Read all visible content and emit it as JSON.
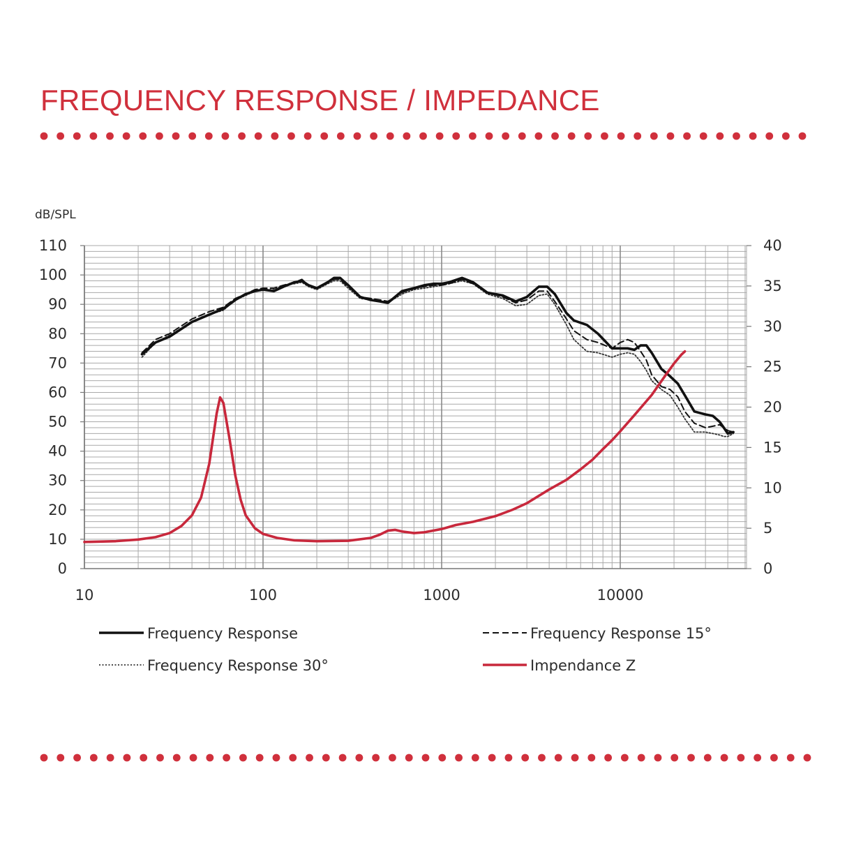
{
  "title": "FREQUENCY RESPONSE / IMPEDANCE",
  "colors": {
    "accent": "#d0303c",
    "curve": "#111111",
    "grid": "#a9a9a9",
    "impedance": "#c8283c"
  },
  "chart_data": {
    "type": "line",
    "ylabel": "dB/SPL",
    "x_scale": "log",
    "xlim": [
      10,
      50000
    ],
    "ylim": [
      0,
      110
    ],
    "y2lim": [
      0,
      40
    ],
    "x_ticks": [
      "10",
      "100",
      "1000",
      "10000"
    ],
    "y_ticks": [
      "0",
      "10",
      "20",
      "30",
      "40",
      "50",
      "60",
      "70",
      "80",
      "90",
      "100",
      "110"
    ],
    "y2_ticks": [
      "0",
      "5",
      "10",
      "15",
      "20",
      "25",
      "30",
      "35",
      "40"
    ],
    "grid": true,
    "legend_position": "bottom",
    "series": [
      {
        "name": "Frequency Response",
        "axis": "left",
        "style": "solid",
        "points": [
          [
            21,
            73
          ],
          [
            25,
            77
          ],
          [
            30,
            79
          ],
          [
            40,
            84
          ],
          [
            50,
            86.5
          ],
          [
            60,
            88.5
          ],
          [
            70,
            91.5
          ],
          [
            80,
            93.5
          ],
          [
            90,
            94.5
          ],
          [
            100,
            95
          ],
          [
            115,
            94.5
          ],
          [
            130,
            96
          ],
          [
            150,
            97.5
          ],
          [
            165,
            98
          ],
          [
            180,
            96.5
          ],
          [
            200,
            95.5
          ],
          [
            230,
            97.5
          ],
          [
            250,
            99
          ],
          [
            270,
            99
          ],
          [
            300,
            96.5
          ],
          [
            350,
            92.5
          ],
          [
            400,
            91.5
          ],
          [
            450,
            91
          ],
          [
            500,
            90.5
          ],
          [
            600,
            94.5
          ],
          [
            700,
            95.5
          ],
          [
            800,
            96.5
          ],
          [
            900,
            97
          ],
          [
            1000,
            97
          ],
          [
            1100,
            97.5
          ],
          [
            1300,
            99
          ],
          [
            1500,
            97.5
          ],
          [
            1800,
            94
          ],
          [
            2200,
            93
          ],
          [
            2600,
            91
          ],
          [
            3000,
            92.5
          ],
          [
            3500,
            96
          ],
          [
            3900,
            96
          ],
          [
            4300,
            93.5
          ],
          [
            5000,
            87
          ],
          [
            5500,
            84.5
          ],
          [
            6500,
            83
          ],
          [
            7500,
            80
          ],
          [
            9000,
            75
          ],
          [
            10000,
            75
          ],
          [
            11000,
            75
          ],
          [
            12000,
            74.5
          ],
          [
            13000,
            76
          ],
          [
            14000,
            76
          ],
          [
            15000,
            73.5
          ],
          [
            17000,
            68
          ],
          [
            19000,
            65.5
          ],
          [
            21000,
            63
          ],
          [
            23000,
            59
          ],
          [
            26000,
            53.5
          ],
          [
            30000,
            52.5
          ],
          [
            33000,
            52
          ],
          [
            36000,
            50
          ],
          [
            38000,
            48
          ],
          [
            40000,
            46
          ],
          [
            43000,
            46.5
          ]
        ]
      },
      {
        "name": "Frequency Response 15°",
        "axis": "left",
        "style": "dashed",
        "points": [
          [
            21,
            73.5
          ],
          [
            25,
            78
          ],
          [
            30,
            80
          ],
          [
            40,
            85
          ],
          [
            50,
            87.5
          ],
          [
            60,
            89
          ],
          [
            70,
            92
          ],
          [
            80,
            93.5
          ],
          [
            90,
            95
          ],
          [
            100,
            95.5
          ],
          [
            115,
            95.5
          ],
          [
            130,
            96.5
          ],
          [
            150,
            97.5
          ],
          [
            165,
            98.5
          ],
          [
            180,
            96.5
          ],
          [
            200,
            95.5
          ],
          [
            230,
            97.5
          ],
          [
            250,
            98.5
          ],
          [
            270,
            98.5
          ],
          [
            300,
            96
          ],
          [
            350,
            92.5
          ],
          [
            400,
            92
          ],
          [
            450,
            91.5
          ],
          [
            500,
            91
          ],
          [
            600,
            94
          ],
          [
            700,
            95.5
          ],
          [
            800,
            96
          ],
          [
            900,
            96.5
          ],
          [
            1000,
            96.5
          ],
          [
            1100,
            97
          ],
          [
            1300,
            98.5
          ],
          [
            1500,
            97
          ],
          [
            1800,
            94
          ],
          [
            2200,
            92.5
          ],
          [
            2600,
            90.5
          ],
          [
            3000,
            91.5
          ],
          [
            3500,
            94.5
          ],
          [
            3900,
            94.5
          ],
          [
            4300,
            91
          ],
          [
            5000,
            85
          ],
          [
            5500,
            81
          ],
          [
            6500,
            78
          ],
          [
            7500,
            77
          ],
          [
            9000,
            75
          ],
          [
            10000,
            77
          ],
          [
            11000,
            78
          ],
          [
            12000,
            77
          ],
          [
            13000,
            74
          ],
          [
            14000,
            71
          ],
          [
            15000,
            66
          ],
          [
            17000,
            62
          ],
          [
            19000,
            61
          ],
          [
            21000,
            58.5
          ],
          [
            23000,
            53.5
          ],
          [
            26000,
            49.5
          ],
          [
            30000,
            48
          ],
          [
            33000,
            48.5
          ],
          [
            36000,
            49
          ],
          [
            38000,
            48
          ],
          [
            40000,
            47
          ],
          [
            43000,
            46.5
          ]
        ]
      },
      {
        "name": "Frequency Response 30°",
        "axis": "left",
        "style": "dotted",
        "points": [
          [
            21,
            72
          ],
          [
            25,
            77
          ],
          [
            30,
            79.5
          ],
          [
            40,
            84
          ],
          [
            50,
            86.5
          ],
          [
            60,
            88
          ],
          [
            70,
            91.5
          ],
          [
            80,
            93
          ],
          [
            90,
            94.5
          ],
          [
            100,
            95
          ],
          [
            115,
            95
          ],
          [
            130,
            96.5
          ],
          [
            150,
            97
          ],
          [
            165,
            97.5
          ],
          [
            180,
            96
          ],
          [
            200,
            95
          ],
          [
            230,
            97
          ],
          [
            250,
            98
          ],
          [
            270,
            98
          ],
          [
            300,
            95.5
          ],
          [
            350,
            92
          ],
          [
            400,
            91.5
          ],
          [
            450,
            91
          ],
          [
            500,
            90.5
          ],
          [
            600,
            93.5
          ],
          [
            700,
            95
          ],
          [
            800,
            95.5
          ],
          [
            900,
            96
          ],
          [
            1000,
            96.5
          ],
          [
            1100,
            97
          ],
          [
            1300,
            98
          ],
          [
            1500,
            97
          ],
          [
            1800,
            93.5
          ],
          [
            2200,
            92
          ],
          [
            2600,
            89.5
          ],
          [
            3000,
            90
          ],
          [
            3500,
            93
          ],
          [
            3900,
            93.5
          ],
          [
            4300,
            90
          ],
          [
            5000,
            83
          ],
          [
            5500,
            78
          ],
          [
            6500,
            74
          ],
          [
            7500,
            73.5
          ],
          [
            9000,
            72
          ],
          [
            10000,
            73
          ],
          [
            11000,
            73.5
          ],
          [
            12000,
            73
          ],
          [
            13000,
            70.5
          ],
          [
            14000,
            67.5
          ],
          [
            15000,
            64
          ],
          [
            17000,
            61
          ],
          [
            19000,
            59
          ],
          [
            21000,
            55
          ],
          [
            23000,
            51
          ],
          [
            26000,
            46.5
          ],
          [
            30000,
            46.5
          ],
          [
            33000,
            46
          ],
          [
            36000,
            45.5
          ],
          [
            38000,
            45
          ],
          [
            40000,
            45
          ],
          [
            43000,
            46
          ]
        ]
      },
      {
        "name": "Impendance Z",
        "axis": "right",
        "style": "solid",
        "points": [
          [
            10,
            3.3
          ],
          [
            15,
            3.4
          ],
          [
            20,
            3.6
          ],
          [
            25,
            3.9
          ],
          [
            30,
            4.4
          ],
          [
            35,
            5.3
          ],
          [
            40,
            6.6
          ],
          [
            45,
            8.8
          ],
          [
            50,
            13
          ],
          [
            55,
            19.2
          ],
          [
            57.5,
            21.2
          ],
          [
            60,
            20.5
          ],
          [
            65,
            16
          ],
          [
            70,
            11.5
          ],
          [
            75,
            8.5
          ],
          [
            80,
            6.6
          ],
          [
            90,
            5
          ],
          [
            100,
            4.3
          ],
          [
            120,
            3.8
          ],
          [
            150,
            3.5
          ],
          [
            200,
            3.4
          ],
          [
            300,
            3.45
          ],
          [
            400,
            3.8
          ],
          [
            450,
            4.2
          ],
          [
            500,
            4.7
          ],
          [
            550,
            4.8
          ],
          [
            600,
            4.6
          ],
          [
            700,
            4.4
          ],
          [
            800,
            4.5
          ],
          [
            1000,
            4.9
          ],
          [
            1200,
            5.4
          ],
          [
            1500,
            5.8
          ],
          [
            2000,
            6.5
          ],
          [
            2500,
            7.3
          ],
          [
            3000,
            8.1
          ],
          [
            4000,
            9.8
          ],
          [
            5000,
            11
          ],
          [
            6000,
            12.3
          ],
          [
            7000,
            13.5
          ],
          [
            8000,
            14.8
          ],
          [
            9000,
            15.9
          ],
          [
            10000,
            17
          ],
          [
            12000,
            19
          ],
          [
            15000,
            21.5
          ],
          [
            18000,
            24
          ],
          [
            20000,
            25.4
          ],
          [
            22000,
            26.5
          ],
          [
            23000,
            26.9
          ]
        ]
      }
    ]
  }
}
